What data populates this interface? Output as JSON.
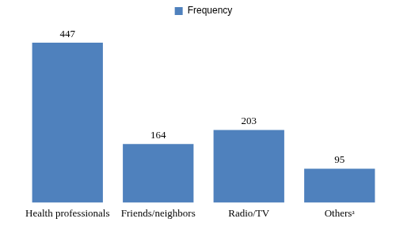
{
  "chart_data": {
    "type": "bar",
    "categories": [
      "Health professionals",
      "Friends/neighbors",
      "Radio/TV",
      "Othersᵃ"
    ],
    "series": [
      {
        "name": "Frequency",
        "color": "#4f81bd",
        "values": [
          447,
          164,
          203,
          95
        ]
      }
    ],
    "ylim": [
      0,
      500
    ],
    "grid": false,
    "legend": "top",
    "data_labels": true,
    "tick_labels": "x"
  }
}
